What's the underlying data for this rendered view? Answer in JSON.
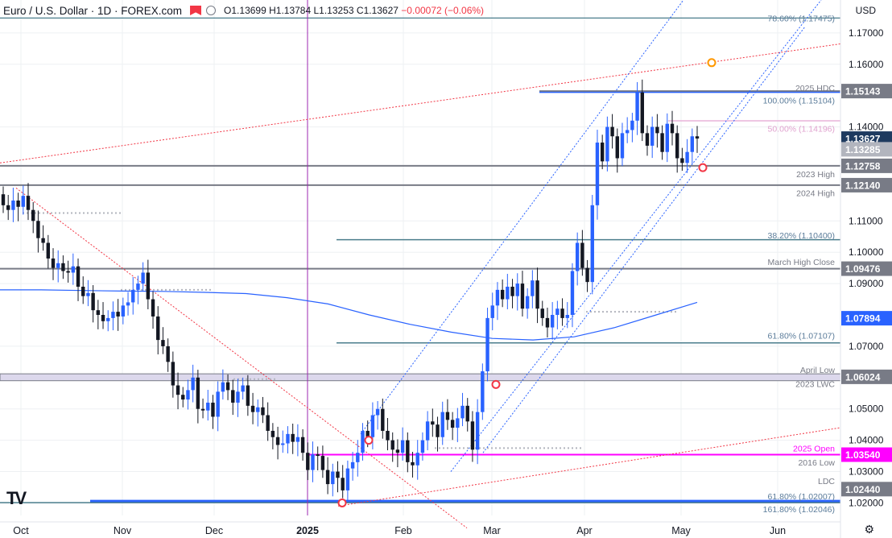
{
  "header": {
    "title": "Euro / U.S. Dollar · 1D · FOREX.com",
    "open": "O1.13699",
    "high": "H1.13784",
    "low": "L1.13253",
    "close": "C1.13627",
    "change": "−0.00072 (−0.06%)",
    "currency": "USD"
  },
  "logo_text": "TV",
  "chart_data": {
    "type": "candlestick",
    "x_ticks": [
      "Oct",
      "Nov",
      "Dec",
      "2025",
      "Feb",
      "Mar",
      "Apr",
      "May",
      "Jun"
    ],
    "y_ticks": [
      "1.17000",
      "1.16000",
      "1.14000",
      "1.11000",
      "1.10000",
      "1.09000",
      "1.07000",
      "1.05000",
      "1.04000",
      "1.03000",
      "1.02000"
    ],
    "price_labels": [
      {
        "value": "1.15143",
        "color": "#787b86"
      },
      {
        "value": "1.13627",
        "color": "#1e3a5f"
      },
      {
        "value": "1.13285",
        "color": "#b2b5be"
      },
      {
        "value": "1.12758",
        "color": "#787b86"
      },
      {
        "value": "1.12140",
        "color": "#787b86"
      },
      {
        "value": "1.09476",
        "color": "#787b86"
      },
      {
        "value": "1.07894",
        "color": "#2962ff"
      },
      {
        "value": "1.06024",
        "color": "#787b86"
      },
      {
        "value": "1.03540",
        "color": "#ff00ff"
      },
      {
        "value": "1.02440",
        "color": "#787b86"
      }
    ],
    "level_labels": [
      {
        "text": "78.60% (1.17475)",
        "price": 1.17475,
        "color": "#5b7c9a"
      },
      {
        "text": "2025 HDC",
        "price": 1.1525,
        "color": "#787b86"
      },
      {
        "text": "100.00% (1.15104)",
        "price": 1.1485,
        "color": "#5b7c9a"
      },
      {
        "text": "50.00% (1.14196)",
        "price": 1.1395,
        "color": "#e0a3cf"
      },
      {
        "text": "2023 High",
        "price": 1.125,
        "color": "#787b86"
      },
      {
        "text": "2024 High",
        "price": 1.119,
        "color": "#787b86"
      },
      {
        "text": "38.20% (1.10400)",
        "price": 1.1055,
        "color": "#5b7c9a"
      },
      {
        "text": "March High Close",
        "price": 1.097,
        "color": "#787b86"
      },
      {
        "text": "61.80% (1.07107)",
        "price": 1.0735,
        "color": "#5b7c9a"
      },
      {
        "text": "April Low",
        "price": 1.0625,
        "color": "#787b86"
      },
      {
        "text": "2023 LWC",
        "price": 1.058,
        "color": "#787b86"
      },
      {
        "text": "2025 Open",
        "price": 1.0375,
        "color": "#ff00ff"
      },
      {
        "text": "2016 Low",
        "price": 1.033,
        "color": "#787b86"
      },
      {
        "text": "LDC",
        "price": 1.027,
        "color": "#787b86"
      },
      {
        "text": "61.80% (1.02007)",
        "price": 1.0222,
        "color": "#5b7c9a"
      },
      {
        "text": "161.80% (1.02046)",
        "price": 1.018,
        "color": "#5b7c9a"
      }
    ],
    "closes": [
      1.115,
      1.1135,
      1.1165,
      1.1145,
      1.118,
      1.1135,
      1.11,
      1.1045,
      1.103,
      1.098,
      1.095,
      1.0965,
      1.094,
      1.0935,
      1.0955,
      1.089,
      1.086,
      1.087,
      1.0815,
      1.08,
      1.078,
      1.079,
      1.081,
      1.0795,
      1.083,
      1.084,
      1.088,
      1.09,
      1.0935,
      1.085,
      1.0795,
      1.072,
      1.07,
      1.065,
      1.0575,
      1.0545,
      1.053,
      1.056,
      1.06,
      1.05,
      1.0495,
      1.052,
      1.0475,
      1.0555,
      1.0585,
      1.056,
      1.052,
      1.0555,
      1.0575,
      1.051,
      1.049,
      1.0505,
      1.048,
      1.043,
      1.041,
      1.0385,
      1.039,
      1.042,
      1.0395,
      1.041,
      1.036,
      1.0305,
      1.0355,
      1.035,
      1.0305,
      1.026,
      1.03,
      1.028,
      1.024,
      1.031,
      1.033,
      1.036,
      1.043,
      1.041,
      1.048,
      1.05,
      1.043,
      1.04,
      1.037,
      1.036,
      1.04,
      1.033,
      1.032,
      1.036,
      1.04,
      1.046,
      1.045,
      1.041,
      1.049,
      1.0465,
      1.044,
      1.047,
      1.051,
      1.046,
      1.037,
      1.049,
      1.062,
      1.079,
      1.083,
      1.088,
      1.085,
      1.089,
      1.086,
      1.09,
      1.082,
      1.086,
      1.091,
      1.082,
      1.079,
      1.076,
      1.08,
      1.082,
      1.079,
      1.08,
      1.094,
      1.103,
      1.095,
      1.0905,
      1.115,
      1.135,
      1.129,
      1.14,
      1.137,
      1.13,
      1.138,
      1.139,
      1.142,
      1.151,
      1.138,
      1.134,
      1.14,
      1.138,
      1.132,
      1.141,
      1.138,
      1.13,
      1.1285,
      1.132,
      1.137,
      1.1363
    ],
    "sma_200": [
      1.088,
      1.088,
      1.0878,
      1.0876,
      1.0875,
      1.0872,
      1.0868,
      1.0855,
      1.0835,
      1.08,
      1.077,
      1.0745,
      1.0725,
      1.072,
      1.073,
      1.076,
      1.08,
      1.084
    ],
    "yrange": [
      1.016,
      1.1805
    ]
  }
}
